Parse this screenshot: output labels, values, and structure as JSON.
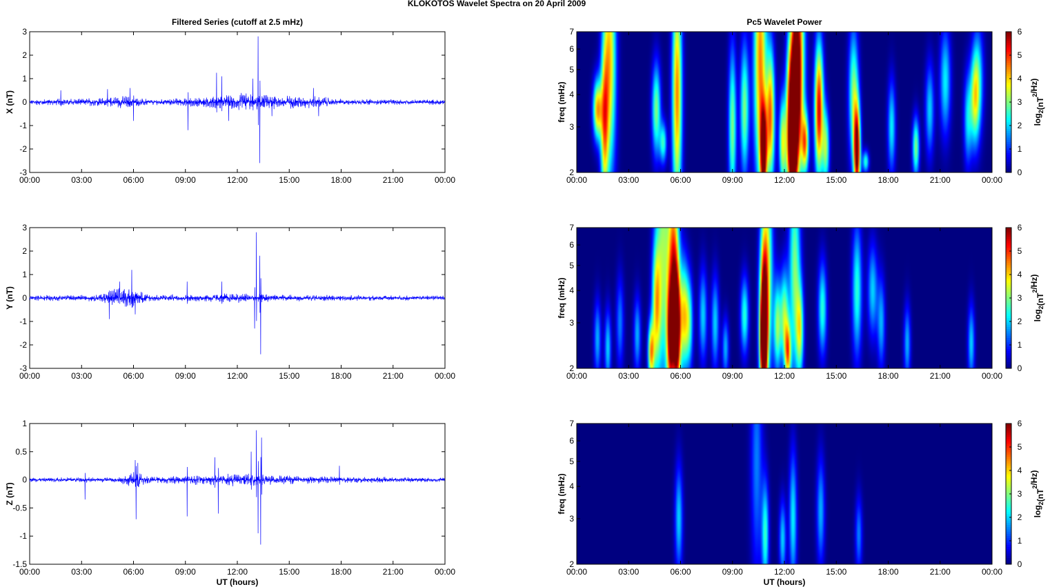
{
  "figure": {
    "title": "KLOKOTOS Wavelet Spectra on 20 April     2009",
    "left_title": "Filtered Series (cutoff at 2.5 mHz)",
    "right_title": "Pc5 Wavelet Power",
    "xlabel": "UT (hours)"
  },
  "colors": {
    "trace": "#0000ff",
    "axis": "#000000",
    "background": "#ffffff",
    "colormap": "jet"
  },
  "chart_data": [
    {
      "type": "line",
      "component": "X",
      "ylabel": "X (nT)",
      "ylim": [
        -3,
        3
      ],
      "yticks": [
        "3",
        "2",
        "1",
        "0",
        "-1",
        "-2",
        "-3"
      ],
      "ytick_values": [
        3,
        2,
        1,
        0,
        -1,
        -2,
        -3
      ],
      "xlim": [
        0,
        24
      ],
      "xticks": [
        "00:00",
        "03:00",
        "06:00",
        "09:00",
        "12:00",
        "15:00",
        "18:00",
        "21:00",
        "00:00"
      ],
      "noise": [
        [
          0,
          0.12
        ],
        [
          4,
          0.18
        ],
        [
          5.5,
          0.28
        ],
        [
          7,
          0.12
        ],
        [
          9,
          0.18
        ],
        [
          11,
          0.32
        ],
        [
          12.5,
          0.42
        ],
        [
          13.5,
          0.32
        ],
        [
          16.5,
          0.28
        ],
        [
          18,
          0.12
        ],
        [
          24,
          0.12
        ]
      ],
      "spikes": [
        [
          1.8,
          0.5
        ],
        [
          4.5,
          0.55
        ],
        [
          5.8,
          0.6
        ],
        [
          6.0,
          -0.8
        ],
        [
          9.15,
          -1.2
        ],
        [
          10.8,
          1.25
        ],
        [
          11.1,
          1.1
        ],
        [
          11.5,
          -0.8
        ],
        [
          12.9,
          1.0
        ],
        [
          13.2,
          2.8
        ],
        [
          13.3,
          -2.6
        ],
        [
          14.0,
          -0.6
        ],
        [
          16.4,
          0.6
        ],
        [
          16.7,
          -0.6
        ]
      ]
    },
    {
      "type": "line",
      "component": "Y",
      "ylabel": "Y (nT)",
      "ylim": [
        -3,
        3
      ],
      "yticks": [
        "3",
        "2",
        "1",
        "0",
        "-1",
        "-2",
        "-3"
      ],
      "ytick_values": [
        3,
        2,
        1,
        0,
        -1,
        -2,
        -3
      ],
      "xlim": [
        0,
        24
      ],
      "xticks": [
        "00:00",
        "03:00",
        "06:00",
        "09:00",
        "12:00",
        "15:00",
        "18:00",
        "21:00",
        "00:00"
      ],
      "noise": [
        [
          0,
          0.12
        ],
        [
          4,
          0.15
        ],
        [
          5.0,
          0.45
        ],
        [
          6.0,
          0.42
        ],
        [
          7,
          0.14
        ],
        [
          10,
          0.16
        ],
        [
          11.5,
          0.22
        ],
        [
          13,
          0.22
        ],
        [
          14,
          0.15
        ],
        [
          24,
          0.1
        ]
      ],
      "spikes": [
        [
          4.6,
          -0.9
        ],
        [
          5.2,
          0.7
        ],
        [
          5.9,
          1.2
        ],
        [
          6.1,
          -0.7
        ],
        [
          9.1,
          0.7
        ],
        [
          11.1,
          0.7
        ],
        [
          13.1,
          2.8
        ],
        [
          13.3,
          1.8
        ],
        [
          13.35,
          -2.4
        ],
        [
          13.0,
          -1.3
        ]
      ]
    },
    {
      "type": "line",
      "component": "Z",
      "ylabel": "Z (nT)",
      "ylim": [
        -1.5,
        1
      ],
      "yticks": [
        "1",
        "0.5",
        "0",
        "-0.5",
        "-1",
        "-1.5"
      ],
      "ytick_values": [
        1,
        0.5,
        0,
        -0.5,
        -1,
        -1.5
      ],
      "xlim": [
        0,
        24
      ],
      "xticks": [
        "00:00",
        "03:00",
        "06:00",
        "09:00",
        "12:00",
        "15:00",
        "18:00",
        "21:00",
        "00:00"
      ],
      "noise": [
        [
          0,
          0.04
        ],
        [
          5,
          0.05
        ],
        [
          6.2,
          0.18
        ],
        [
          7,
          0.06
        ],
        [
          9,
          0.08
        ],
        [
          11,
          0.12
        ],
        [
          13,
          0.12
        ],
        [
          15,
          0.08
        ],
        [
          18,
          0.06
        ],
        [
          24,
          0.04
        ]
      ],
      "spikes": [
        [
          3.2,
          -0.35
        ],
        [
          6.1,
          0.35
        ],
        [
          6.15,
          -0.7
        ],
        [
          6.25,
          0.3
        ],
        [
          9.1,
          -0.65
        ],
        [
          10.7,
          0.4
        ],
        [
          10.9,
          -0.6
        ],
        [
          12.8,
          0.5
        ],
        [
          13.1,
          0.88
        ],
        [
          13.2,
          -0.95
        ],
        [
          13.35,
          -1.15
        ],
        [
          13.4,
          0.75
        ],
        [
          17.9,
          0.25
        ]
      ]
    },
    {
      "type": "heatmap",
      "component": "X",
      "ylabel": "freq (mHz)",
      "scale": "log",
      "ylim": [
        2,
        7
      ],
      "yticks": [
        "7",
        "6",
        "5",
        "4",
        "3",
        "2"
      ],
      "ytick_values": [
        7,
        6,
        5,
        4,
        3,
        2
      ],
      "xlim": [
        0,
        24
      ],
      "xticks": [
        "00:00",
        "03:00",
        "06:00",
        "09:00",
        "12:00",
        "15:00",
        "18:00",
        "21:00",
        "00:00"
      ],
      "clim": [
        0,
        6
      ],
      "colorbar_ticks": [
        "6",
        "5",
        "4",
        "3",
        "2",
        "1",
        "0"
      ],
      "colorbar_label": "log2(nT2/Hz)",
      "blobs": [
        [
          1.2,
          3.5,
          1.3,
          4.2
        ],
        [
          1.6,
          3.0,
          2.0,
          3.5
        ],
        [
          1.9,
          5.5,
          2.8,
          4.0
        ],
        [
          4.6,
          3.5,
          1.5,
          3.0
        ],
        [
          5.0,
          2.6,
          1.2,
          2.5
        ],
        [
          5.8,
          4.0,
          2.8,
          4.5
        ],
        [
          9.0,
          3.0,
          2.0,
          3.0
        ],
        [
          9.7,
          3.5,
          1.8,
          3.0
        ],
        [
          10.6,
          5.5,
          3.0,
          4.5
        ],
        [
          10.8,
          2.4,
          1.5,
          6.0
        ],
        [
          11.2,
          3.3,
          1.8,
          4.5
        ],
        [
          11.9,
          2.6,
          1.5,
          3.5
        ],
        [
          12.3,
          3.0,
          2.0,
          4.5
        ],
        [
          12.5,
          2.3,
          1.3,
          5.5
        ],
        [
          12.6,
          3.8,
          2.0,
          5.5
        ],
        [
          12.8,
          5.5,
          2.8,
          5.0
        ],
        [
          13.2,
          2.6,
          1.3,
          4.0
        ],
        [
          14.0,
          3.5,
          1.8,
          5.5
        ],
        [
          14.4,
          2.5,
          1.4,
          3.0
        ],
        [
          16.2,
          2.4,
          1.5,
          6.0
        ],
        [
          16.0,
          4.0,
          1.8,
          3.0
        ],
        [
          16.7,
          2.2,
          1.1,
          2.5
        ],
        [
          18.2,
          3.0,
          1.5,
          2.2
        ],
        [
          19.6,
          2.5,
          1.3,
          3.0
        ],
        [
          20.4,
          3.5,
          1.5,
          2.0
        ],
        [
          21.3,
          4.5,
          1.6,
          2.2
        ],
        [
          22.6,
          3.2,
          1.5,
          2.0
        ],
        [
          23.0,
          3.8,
          1.5,
          2.8
        ],
        [
          23.2,
          4.6,
          1.6,
          2.0
        ]
      ]
    },
    {
      "type": "heatmap",
      "component": "Y",
      "ylabel": "freq (mHz)",
      "scale": "log",
      "ylim": [
        2,
        7
      ],
      "yticks": [
        "7",
        "6",
        "5",
        "4",
        "3",
        "2"
      ],
      "ytick_values": [
        7,
        6,
        5,
        4,
        3,
        2
      ],
      "xlim": [
        0,
        24
      ],
      "xticks": [
        "00:00",
        "03:00",
        "06:00",
        "09:00",
        "12:00",
        "15:00",
        "18:00",
        "21:00",
        "00:00"
      ],
      "clim": [
        0,
        6
      ],
      "colorbar_ticks": [
        "6",
        "5",
        "4",
        "3",
        "2",
        "1",
        "0"
      ],
      "colorbar_label": "log2(nT2/Hz)",
      "blobs": [
        [
          1.2,
          2.6,
          1.4,
          1.8
        ],
        [
          1.8,
          2.4,
          1.4,
          2.0
        ],
        [
          2.5,
          3.0,
          1.5,
          1.5
        ],
        [
          3.5,
          2.7,
          1.4,
          1.8
        ],
        [
          4.3,
          2.3,
          1.3,
          4.0
        ],
        [
          4.6,
          3.5,
          1.8,
          3.5
        ],
        [
          5.0,
          6.0,
          3.5,
          3.0
        ],
        [
          5.4,
          2.6,
          1.6,
          4.0
        ],
        [
          5.6,
          4.5,
          2.6,
          5.0
        ],
        [
          5.8,
          2.8,
          1.7,
          5.5
        ],
        [
          6.2,
          3.2,
          1.6,
          3.5
        ],
        [
          6.5,
          3.0,
          1.5,
          2.5
        ],
        [
          7.3,
          3.2,
          1.5,
          2.0
        ],
        [
          8.0,
          3.0,
          1.5,
          2.0
        ],
        [
          8.6,
          2.4,
          1.3,
          1.8
        ],
        [
          9.7,
          3.2,
          1.4,
          2.5
        ],
        [
          10.8,
          2.5,
          1.5,
          5.0
        ],
        [
          10.8,
          3.2,
          2.0,
          4.5
        ],
        [
          11.0,
          4.8,
          2.5,
          3.5
        ],
        [
          11.6,
          2.9,
          1.5,
          3.0
        ],
        [
          12.0,
          3.2,
          1.5,
          3.0
        ],
        [
          12.2,
          2.3,
          1.3,
          4.0
        ],
        [
          12.6,
          4.8,
          2.5,
          3.0
        ],
        [
          12.9,
          2.8,
          1.5,
          3.0
        ],
        [
          14.2,
          3.4,
          1.5,
          2.5
        ],
        [
          16.2,
          4.0,
          1.8,
          2.5
        ],
        [
          17.1,
          4.0,
          1.5,
          2.0
        ],
        [
          17.6,
          3.0,
          1.5,
          1.8
        ],
        [
          19.1,
          2.5,
          1.4,
          1.8
        ],
        [
          22.8,
          2.5,
          1.4,
          2.0
        ]
      ]
    },
    {
      "type": "heatmap",
      "component": "Z",
      "ylabel": "freq (mHz)",
      "scale": "log",
      "ylim": [
        2,
        7
      ],
      "yticks": [
        "7",
        "6",
        "5",
        "4",
        "3",
        "2"
      ],
      "ytick_values": [
        7,
        6,
        5,
        4,
        3,
        2
      ],
      "xlim": [
        0,
        24
      ],
      "xticks": [
        "00:00",
        "03:00",
        "06:00",
        "09:00",
        "12:00",
        "15:00",
        "18:00",
        "21:00",
        "00:00"
      ],
      "clim": [
        0,
        6
      ],
      "colorbar_ticks": [
        "6",
        "5",
        "4",
        "3",
        "2",
        "1",
        "0"
      ],
      "colorbar_label": "log2(nT2/Hz)",
      "blobs": [
        [
          5.9,
          3.0,
          1.6,
          2.0
        ],
        [
          10.4,
          5.0,
          2.8,
          1.5
        ],
        [
          10.9,
          2.6,
          1.6,
          2.5
        ],
        [
          11.9,
          2.5,
          1.4,
          2.0
        ],
        [
          12.5,
          3.0,
          1.8,
          2.2
        ],
        [
          14.1,
          3.2,
          1.6,
          1.8
        ],
        [
          16.3,
          2.6,
          1.4,
          1.5
        ]
      ]
    }
  ]
}
